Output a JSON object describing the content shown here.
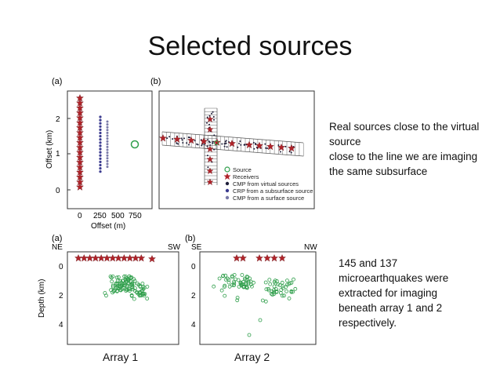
{
  "slide": {
    "title": "Selected sources",
    "note_lines": [
      "Real sources close to the virtual",
      "source",
      "close to the line we are imaging",
      "the same subsurface"
    ],
    "stats_lines": [
      "145 and 137",
      "microearthquakes were",
      "extracted for imaging",
      "beneath array 1 and 2",
      "respectively."
    ],
    "caption_1": "Array 1",
    "caption_2": "Array 2"
  },
  "figure_top": {
    "panel_a_label": "(a)",
    "panel_b_label": "(b)",
    "y_axis_label": "Offset (km)",
    "y_ticks": [
      "0",
      "1",
      "2"
    ],
    "x_axis_label": "Offset (m)",
    "x_ticks": [
      "0",
      "250",
      "500",
      "750"
    ],
    "legend": [
      {
        "label": "Source",
        "symbol": "open-circle",
        "color": "#2e9e4a"
      },
      {
        "label": "Receivers",
        "symbol": "star",
        "color": "#b0242a"
      },
      {
        "label": "CMP from virtual sources",
        "symbol": "dot",
        "color": "#1f1f3a"
      },
      {
        "label": "CRP from a subsurface source",
        "symbol": "dot",
        "color": "#3b3b8f"
      },
      {
        "label": "CMP from a surface source",
        "symbol": "dot",
        "color": "#7a7aa8"
      }
    ]
  },
  "figure_bottom": {
    "panel_a_label": "(a)",
    "panel_b_label": "(b)",
    "panel_a_left": "NE",
    "panel_a_right": "SW",
    "panel_b_left": "SE",
    "panel_b_right": "NW",
    "y_axis_label": "Depth (km)",
    "y_ticks": [
      "0",
      "2",
      "4"
    ]
  },
  "colors": {
    "star": "#b0242a",
    "source_green": "#2e9e4a",
    "cmp_dark": "#1f1f3a",
    "crp_blue": "#3b3b8f",
    "cmp_grey": "#7a7aa8"
  }
}
